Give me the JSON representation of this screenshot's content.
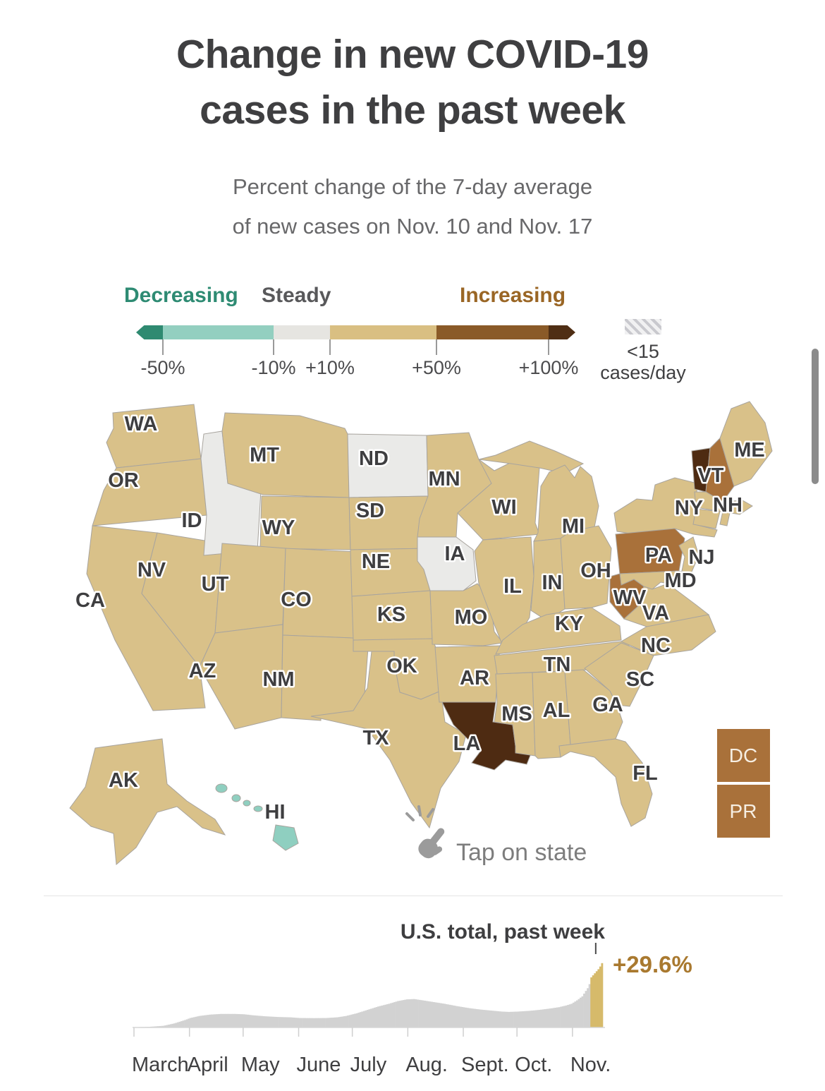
{
  "header": {
    "title_line1": "Change in new COVID-19",
    "title_line2": "cases in the past week",
    "subtitle_line1": "Percent change of the 7-day average",
    "subtitle_line2": "of new cases on Nov. 10 and Nov. 17"
  },
  "legend": {
    "decreasing_label": "Decreasing",
    "steady_label": "Steady",
    "increasing_label": "Increasing",
    "ticks": [
      {
        "label": "-50%",
        "x": 231
      },
      {
        "label": "-10%",
        "x": 388
      },
      {
        "label": "+10%",
        "x": 468
      },
      {
        "label": "+50%",
        "x": 619
      },
      {
        "label": "+100%",
        "x": 778
      }
    ],
    "colors": {
      "teal_dark": "#2F8A71",
      "teal_light": "#93CFC0",
      "gray": "#E6E5E1",
      "tan": "#D9BF82",
      "brown": "#8A5A28",
      "brown_dark": "#4F2E14"
    },
    "hatch_line1": "<15",
    "hatch_line2": "cases/day"
  },
  "map": {
    "tap_hint": "Tap on state",
    "fills": {
      "down": "#8FCFC0",
      "steady": "#EAEAE8",
      "up_mod": "#D9C189",
      "up_strong": "#A9713A",
      "up_extreme": "#4E2B12"
    },
    "territories": [
      {
        "abbr": "DC",
        "category": "up_strong"
      },
      {
        "abbr": "PR",
        "category": "up_strong"
      }
    ],
    "states": [
      {
        "abbr": "WA",
        "category": "up_mod",
        "show_label": true
      },
      {
        "abbr": "OR",
        "category": "up_mod",
        "show_label": true
      },
      {
        "abbr": "CA",
        "category": "up_mod",
        "show_label": true
      },
      {
        "abbr": "NV",
        "category": "up_mod",
        "show_label": true
      },
      {
        "abbr": "ID",
        "category": "steady",
        "show_label": true
      },
      {
        "abbr": "MT",
        "category": "up_mod",
        "show_label": true
      },
      {
        "abbr": "WY",
        "category": "up_mod",
        "show_label": true
      },
      {
        "abbr": "UT",
        "category": "up_mod",
        "show_label": true
      },
      {
        "abbr": "AZ",
        "category": "up_mod",
        "show_label": true
      },
      {
        "abbr": "CO",
        "category": "up_mod",
        "show_label": true
      },
      {
        "abbr": "NM",
        "category": "up_mod",
        "show_label": true
      },
      {
        "abbr": "ND",
        "category": "steady",
        "show_label": true
      },
      {
        "abbr": "SD",
        "category": "up_mod",
        "show_label": true
      },
      {
        "abbr": "NE",
        "category": "up_mod",
        "show_label": true
      },
      {
        "abbr": "KS",
        "category": "up_mod",
        "show_label": true
      },
      {
        "abbr": "OK",
        "category": "up_mod",
        "show_label": true
      },
      {
        "abbr": "TX",
        "category": "up_mod",
        "show_label": true
      },
      {
        "abbr": "MN",
        "category": "up_mod",
        "show_label": true
      },
      {
        "abbr": "IA",
        "category": "steady",
        "show_label": true
      },
      {
        "abbr": "MO",
        "category": "up_mod",
        "show_label": true
      },
      {
        "abbr": "AR",
        "category": "up_mod",
        "show_label": true
      },
      {
        "abbr": "LA",
        "category": "up_extreme",
        "show_label": true
      },
      {
        "abbr": "WI",
        "category": "up_mod",
        "show_label": true
      },
      {
        "abbr": "IL",
        "category": "up_mod",
        "show_label": true
      },
      {
        "abbr": "MS",
        "category": "up_mod",
        "show_label": true
      },
      {
        "abbr": "MI",
        "category": "up_mod",
        "show_label": true
      },
      {
        "abbr": "IN",
        "category": "up_mod",
        "show_label": true
      },
      {
        "abbr": "OH",
        "category": "up_mod",
        "show_label": true
      },
      {
        "abbr": "KY",
        "category": "up_mod",
        "show_label": true
      },
      {
        "abbr": "TN",
        "category": "up_mod",
        "show_label": true
      },
      {
        "abbr": "AL",
        "category": "up_mod",
        "show_label": true
      },
      {
        "abbr": "GA",
        "category": "up_mod",
        "show_label": true
      },
      {
        "abbr": "FL",
        "category": "up_mod",
        "show_label": true
      },
      {
        "abbr": "NY",
        "category": "up_mod",
        "show_label": true
      },
      {
        "abbr": "PA",
        "category": "up_strong",
        "show_label": true
      },
      {
        "abbr": "NJ",
        "category": "up_mod",
        "show_label": true
      },
      {
        "abbr": "VT",
        "category": "up_extreme",
        "show_label": true
      },
      {
        "abbr": "NH",
        "category": "up_strong",
        "show_label": true
      },
      {
        "abbr": "ME",
        "category": "up_mod",
        "show_label": true
      },
      {
        "abbr": "MA",
        "category": "up_mod",
        "show_label": false
      },
      {
        "abbr": "CT",
        "category": "up_mod",
        "show_label": false
      },
      {
        "abbr": "RI",
        "category": "up_mod",
        "show_label": false
      },
      {
        "abbr": "MD",
        "category": "up_mod",
        "show_label": true
      },
      {
        "abbr": "DE",
        "category": "up_mod",
        "show_label": false
      },
      {
        "abbr": "WV",
        "category": "up_strong",
        "show_label": true
      },
      {
        "abbr": "VA",
        "category": "up_mod",
        "show_label": true
      },
      {
        "abbr": "NC",
        "category": "up_mod",
        "show_label": true
      },
      {
        "abbr": "SC",
        "category": "up_mod",
        "show_label": true
      },
      {
        "abbr": "AK",
        "category": "up_mod",
        "show_label": true
      },
      {
        "abbr": "HI",
        "category": "down",
        "show_label": true
      }
    ]
  },
  "footer_chart": {
    "title": "U.S. total, past week",
    "annotation": "+29.6%",
    "months": [
      "March",
      "April",
      "May",
      "June",
      "July",
      "Aug.",
      "Sept.",
      "Oct.",
      "Nov."
    ],
    "colors": {
      "gray": "#d2d2d2",
      "gold": "#d6ba6b",
      "annotation": "#a9792f"
    }
  },
  "chart_data": [
    {
      "type": "choropleth",
      "title": "Change in new COVID-19 cases in the past week",
      "metric": "Percent change of the 7-day average of new cases on Nov. 10 and Nov. 17",
      "legend_labels": [
        "Decreasing",
        "Steady",
        "Increasing"
      ],
      "legend_ticks": [
        "-50%",
        "-10%",
        "+10%",
        "+50%",
        "+100%"
      ],
      "no_data_note": "<15 cases/day",
      "state_categories": {
        "decreasing": [
          "HI"
        ],
        "steady": [
          "ID",
          "ND",
          "IA"
        ],
        "increasing_10_to_50": [
          "WA",
          "OR",
          "CA",
          "NV",
          "MT",
          "WY",
          "UT",
          "AZ",
          "CO",
          "NM",
          "SD",
          "NE",
          "KS",
          "OK",
          "TX",
          "MN",
          "MO",
          "AR",
          "WI",
          "IL",
          "MS",
          "MI",
          "IN",
          "OH",
          "KY",
          "TN",
          "AL",
          "GA",
          "FL",
          "NY",
          "NJ",
          "ME",
          "MA",
          "CT",
          "RI",
          "MD",
          "DE",
          "VA",
          "NC",
          "SC",
          "AK"
        ],
        "increasing_50_to_100": [
          "PA",
          "WV",
          "NH",
          "DC",
          "PR"
        ],
        "increasing_over_100": [
          "VT",
          "LA"
        ]
      }
    },
    {
      "type": "area",
      "title": "U.S. total, past week",
      "annotation": "+29.6%",
      "x_ticks": [
        "March",
        "April",
        "May",
        "June",
        "July",
        "Aug.",
        "Sept.",
        "Oct.",
        "Nov."
      ],
      "month_start_days": [
        0,
        31,
        61,
        92,
        122,
        153,
        184,
        214,
        245
      ],
      "total_days": 262,
      "highlight_last_days": 7,
      "ylim": [
        0,
        100
      ],
      "points": [
        [
          0,
          0.5
        ],
        [
          8,
          1
        ],
        [
          16,
          2.5
        ],
        [
          22,
          6
        ],
        [
          28,
          11
        ],
        [
          31,
          14
        ],
        [
          36,
          17
        ],
        [
          42,
          19
        ],
        [
          48,
          20
        ],
        [
          56,
          20
        ],
        [
          61,
          19.5
        ],
        [
          66,
          18
        ],
        [
          73,
          16.5
        ],
        [
          80,
          15.5
        ],
        [
          87,
          15
        ],
        [
          92,
          14
        ],
        [
          100,
          13.8
        ],
        [
          107,
          14
        ],
        [
          113,
          15
        ],
        [
          118,
          17
        ],
        [
          124,
          21
        ],
        [
          130,
          26
        ],
        [
          136,
          31
        ],
        [
          142,
          35
        ],
        [
          147,
          39
        ],
        [
          152,
          41.5
        ],
        [
          156,
          42
        ],
        [
          161,
          40
        ],
        [
          167,
          37.5
        ],
        [
          173,
          35
        ],
        [
          180,
          31.5
        ],
        [
          187,
          28.5
        ],
        [
          193,
          26.5
        ],
        [
          199,
          25
        ],
        [
          205,
          23.5
        ],
        [
          209,
          23
        ],
        [
          214,
          23.5
        ],
        [
          220,
          24.5
        ],
        [
          226,
          26
        ],
        [
          232,
          28
        ],
        [
          237,
          30
        ],
        [
          241,
          32.5
        ],
        [
          244,
          35
        ],
        [
          247,
          40
        ],
        [
          250,
          46
        ],
        [
          252,
          54
        ],
        [
          253,
          58
        ],
        [
          254,
          64
        ],
        [
          255,
          74
        ],
        [
          256,
          77
        ],
        [
          257,
          80
        ],
        [
          258,
          83
        ],
        [
          259,
          86
        ],
        [
          260,
          90
        ],
        [
          261,
          95
        ]
      ]
    }
  ]
}
